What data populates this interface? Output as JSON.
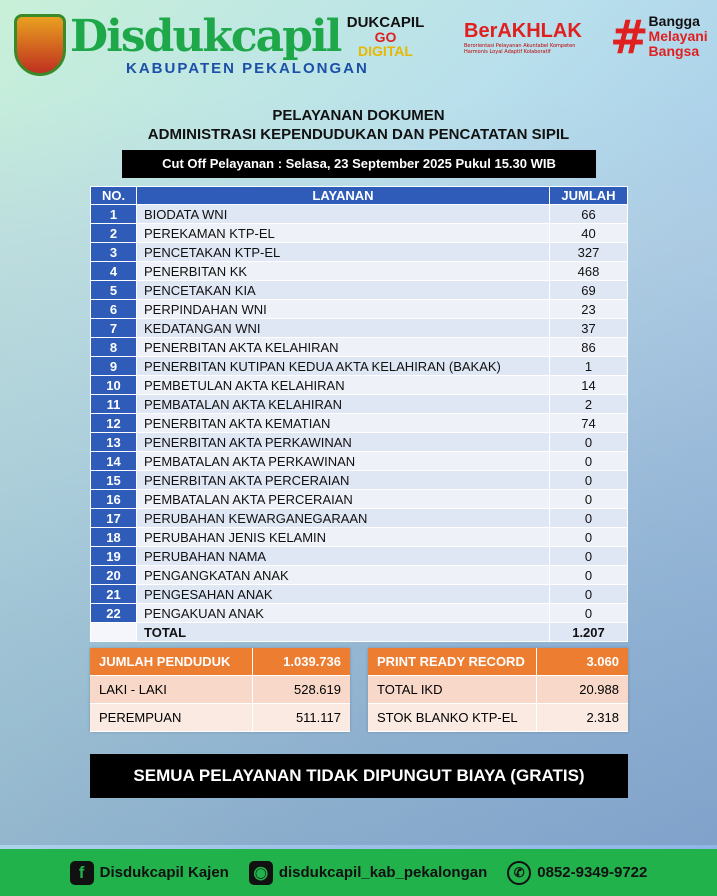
{
  "header": {
    "brand": "Disdukcapil",
    "region": "KABUPATEN PEKALONGAN",
    "go_digital": [
      "DUKCAPIL",
      "GO",
      "DIGITAL"
    ],
    "berakhlak": "BerAKHLAK",
    "berakhlak_tagline": "Berorientasi Pelayanan Akuntabel Kompeten Harmonis Loyal Adaptif Kolaboratif",
    "bangga": [
      "Bangga",
      "Melayani",
      "Bangsa"
    ]
  },
  "title": {
    "line1": "PELAYANAN DOKUMEN",
    "line2": "ADMINISTRASI KEPENDUDUKAN DAN PENCATATAN SIPIL",
    "cutoff": "Cut Off Pelayanan : Selasa, 23 September 2025 Pukul 15.30 WIB"
  },
  "table": {
    "headers": [
      "NO.",
      "LAYANAN",
      "JUMLAH"
    ],
    "rows": [
      {
        "no": "1",
        "layanan": "BIODATA WNI",
        "jumlah": "66"
      },
      {
        "no": "2",
        "layanan": "PEREKAMAN KTP-EL",
        "jumlah": "40"
      },
      {
        "no": "3",
        "layanan": "PENCETAKAN KTP-EL",
        "jumlah": "327"
      },
      {
        "no": "4",
        "layanan": "PENERBITAN KK",
        "jumlah": "468"
      },
      {
        "no": "5",
        "layanan": "PENCETAKAN KIA",
        "jumlah": "69"
      },
      {
        "no": "6",
        "layanan": "PERPINDAHAN WNI",
        "jumlah": "23"
      },
      {
        "no": "7",
        "layanan": "KEDATANGAN WNI",
        "jumlah": "37"
      },
      {
        "no": "8",
        "layanan": "PENERBITAN AKTA KELAHIRAN",
        "jumlah": "86"
      },
      {
        "no": "9",
        "layanan": "PENERBITAN KUTIPAN KEDUA AKTA KELAHIRAN (BAKAK)",
        "jumlah": "1"
      },
      {
        "no": "10",
        "layanan": "PEMBETULAN AKTA KELAHIRAN",
        "jumlah": "14"
      },
      {
        "no": "11",
        "layanan": "PEMBATALAN AKTA KELAHIRAN",
        "jumlah": "2"
      },
      {
        "no": "12",
        "layanan": "PENERBITAN AKTA KEMATIAN",
        "jumlah": "74"
      },
      {
        "no": "13",
        "layanan": "PENERBITAN AKTA PERKAWINAN",
        "jumlah": "0"
      },
      {
        "no": "14",
        "layanan": "PEMBATALAN AKTA PERKAWINAN",
        "jumlah": "0"
      },
      {
        "no": "15",
        "layanan": "PENERBITAN AKTA PERCERAIAN",
        "jumlah": "0"
      },
      {
        "no": "16",
        "layanan": "PEMBATALAN AKTA PERCERAIAN",
        "jumlah": "0"
      },
      {
        "no": "17",
        "layanan": "PERUBAHAN KEWARGANEGARAAN",
        "jumlah": "0"
      },
      {
        "no": "18",
        "layanan": "PERUBAHAN JENIS KELAMIN",
        "jumlah": "0"
      },
      {
        "no": "19",
        "layanan": "PERUBAHAN NAMA",
        "jumlah": "0"
      },
      {
        "no": "20",
        "layanan": "PENGANGKATAN ANAK",
        "jumlah": "0"
      },
      {
        "no": "21",
        "layanan": "PENGESAHAN ANAK",
        "jumlah": "0"
      },
      {
        "no": "22",
        "layanan": "PENGAKUAN ANAK",
        "jumlah": "0"
      }
    ],
    "total_label": "TOTAL",
    "total": "1.207"
  },
  "penduduk": {
    "label": "JUMLAH PENDUDUK",
    "value": "1.039.736",
    "rows": [
      {
        "label": "LAKI - LAKI",
        "value": "528.619"
      },
      {
        "label": "PEREMPUAN",
        "value": "511.117"
      }
    ]
  },
  "record": {
    "label": "PRINT READY RECORD",
    "value": "3.060",
    "rows": [
      {
        "label": "TOTAL IKD",
        "value": "20.988"
      },
      {
        "label": "STOK BLANKO KTP-EL",
        "value": "2.318"
      }
    ]
  },
  "gratis": "SEMUA PELAYANAN TIDAK DIPUNGUT BIAYA (GRATIS)",
  "footer": {
    "facebook": "Disdukcapil Kajen",
    "instagram": "disdukcapil_kab_pekalongan",
    "phone": "0852-9349-9722"
  }
}
